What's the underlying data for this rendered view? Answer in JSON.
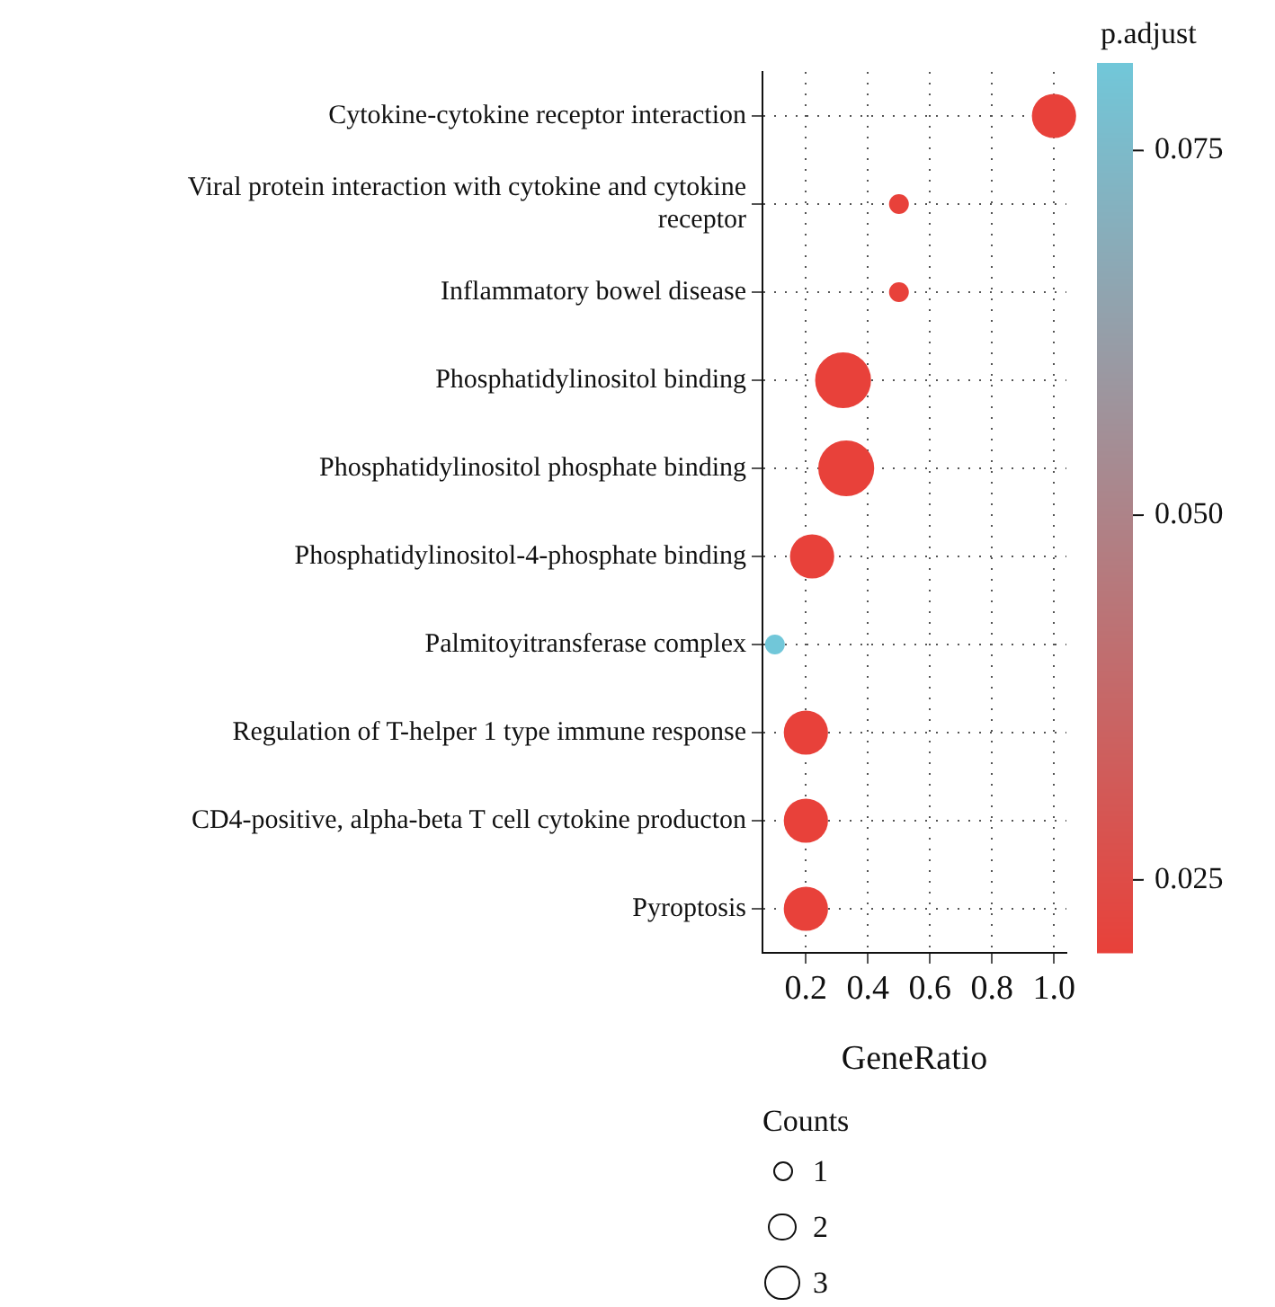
{
  "chart_data": {
    "type": "bubble",
    "xlabel": "GeneRatio",
    "clabel": "p.adjust",
    "legend_title": "Counts",
    "categories": [
      "Cytokine-cytokine receptor interaction",
      "Viral protein interaction with cytokine and cytokine receptor",
      "Inflammatory bowel disease",
      "Phosphatidylinositol binding",
      "Phosphatidylinositol phosphate binding",
      "Phosphatidylinositol-4-phosphate binding",
      "Palmitoyitransferase complex",
      "Regulation of T-helper 1 type immune response",
      "CD4-positive, alpha-beta T cell cytokine producton",
      "Pyroptosis"
    ],
    "orientation": "horizontal",
    "values": [
      1.0,
      0.5,
      0.5,
      0.32,
      0.33,
      0.22,
      0.1,
      0.2,
      0.2,
      0.2
    ],
    "sizes": [
      5,
      1,
      1,
      8,
      8,
      5,
      1,
      5,
      5,
      5
    ],
    "cvalues": [
      0.02,
      0.02,
      0.02,
      0.02,
      0.02,
      0.02,
      0.081,
      0.02,
      0.02,
      0.02
    ],
    "size_legend": [
      {
        "value": 1,
        "label": "1"
      },
      {
        "value": 2,
        "label": "2"
      },
      {
        "value": 3,
        "label": "3"
      }
    ],
    "xlim": [
      0.06,
      1.04
    ],
    "xticks": [
      {
        "value": 0.2,
        "label": "0.2"
      },
      {
        "value": 0.4,
        "label": "0.4"
      },
      {
        "value": 0.6,
        "label": "0.6"
      },
      {
        "value": 0.8,
        "label": "0.8"
      },
      {
        "value": 1.0,
        "label": "1.0"
      }
    ],
    "clim": [
      0.02,
      0.081
    ],
    "cticks": [
      {
        "value": 0.025,
        "label": "0.025"
      },
      {
        "value": 0.05,
        "label": "0.050"
      },
      {
        "value": 0.075,
        "label": "0.075"
      }
    ],
    "grid": true
  }
}
